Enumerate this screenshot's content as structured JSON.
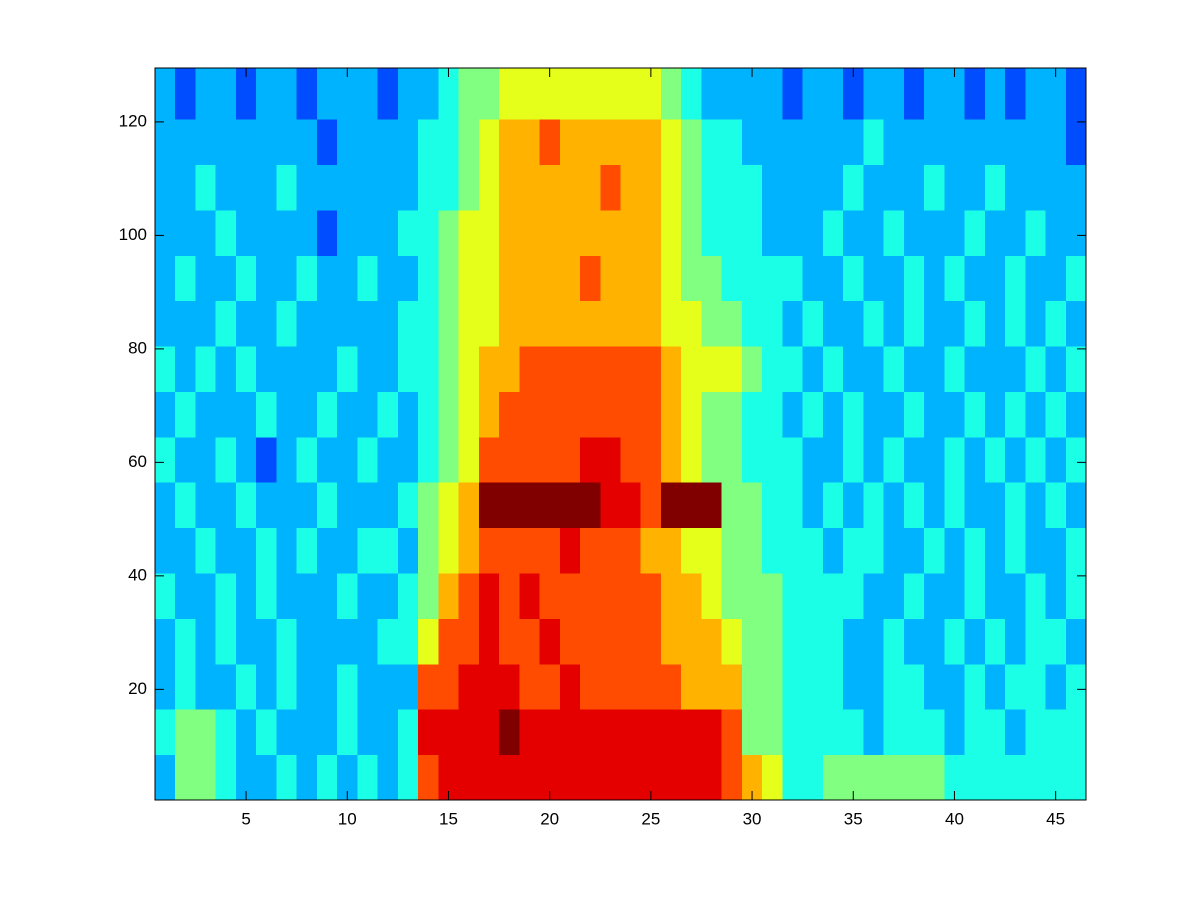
{
  "chart_data": {
    "type": "heatmap",
    "colormap": "jet",
    "clim": [
      0,
      10
    ],
    "xlim": [
      0.5,
      46.5
    ],
    "ylim": [
      0.5,
      129.5
    ],
    "xticks": [
      5,
      10,
      15,
      20,
      25,
      30,
      35,
      40,
      45
    ],
    "yticks": [
      20,
      40,
      60,
      80,
      100,
      120
    ],
    "xbins": [
      0.5,
      1.5,
      2.5,
      3.5,
      4.5,
      5.5,
      6.5,
      7.5,
      8.5,
      9.5,
      10.5,
      11.5,
      12.5,
      13.5,
      14.5,
      15.5,
      16.5,
      17.5,
      18.5,
      19.5,
      20.5,
      21.5,
      22.5,
      23.5,
      24.5,
      25.5,
      26.5,
      27.5,
      28.5,
      29.5,
      30.5,
      31.5,
      32.5,
      33.5,
      34.5,
      35.5,
      36.5,
      37.5,
      38.5,
      39.5,
      40.5,
      41.5,
      42.5,
      43.5,
      44.5,
      45.5,
      46.5
    ],
    "ybins": [
      0.5,
      8.5,
      16.5,
      24.5,
      32.5,
      40.5,
      48.5,
      56.5,
      64.5,
      72.5,
      80.5,
      88.5,
      96.5,
      104.5,
      112.5,
      120.5,
      129.5
    ],
    "z": [
      [
        3,
        5,
        5,
        4,
        3,
        3,
        4,
        3,
        4,
        3,
        4,
        3,
        4,
        8,
        9,
        9,
        9,
        9,
        9,
        9,
        9,
        9,
        9,
        9,
        9,
        9,
        9,
        9,
        8,
        7,
        6,
        4,
        4,
        5,
        5,
        5,
        5,
        5,
        5,
        4,
        4,
        4,
        4,
        4,
        4,
        4
      ],
      [
        4,
        5,
        5,
        4,
        3,
        4,
        3,
        3,
        3,
        4,
        3,
        3,
        4,
        9,
        9,
        9,
        9,
        10,
        9,
        9,
        9,
        9,
        9,
        9,
        9,
        9,
        9,
        9,
        8,
        5,
        5,
        4,
        4,
        4,
        4,
        3,
        4,
        4,
        4,
        3,
        4,
        4,
        3,
        4,
        4,
        4
      ],
      [
        3,
        4,
        3,
        3,
        4,
        3,
        4,
        3,
        3,
        4,
        3,
        3,
        3,
        8,
        8,
        9,
        9,
        9,
        8,
        8,
        9,
        8,
        8,
        8,
        8,
        8,
        7,
        7,
        7,
        5,
        5,
        4,
        4,
        4,
        3,
        3,
        4,
        4,
        3,
        3,
        4,
        3,
        4,
        4,
        3,
        4
      ],
      [
        3,
        4,
        3,
        4,
        3,
        3,
        4,
        3,
        3,
        3,
        3,
        4,
        4,
        6,
        8,
        8,
        9,
        8,
        8,
        9,
        8,
        8,
        8,
        8,
        8,
        7,
        7,
        7,
        6,
        5,
        5,
        4,
        4,
        4,
        3,
        3,
        4,
        3,
        3,
        4,
        3,
        4,
        3,
        4,
        4,
        3
      ],
      [
        4,
        3,
        3,
        4,
        3,
        4,
        3,
        3,
        3,
        4,
        3,
        3,
        4,
        5,
        7,
        8,
        9,
        8,
        9,
        8,
        8,
        8,
        8,
        8,
        8,
        7,
        7,
        6,
        5,
        5,
        5,
        4,
        4,
        4,
        4,
        3,
        3,
        4,
        3,
        3,
        4,
        3,
        3,
        4,
        3,
        4
      ],
      [
        3,
        3,
        4,
        3,
        3,
        4,
        3,
        4,
        3,
        3,
        4,
        4,
        3,
        5,
        6,
        7,
        8,
        8,
        8,
        8,
        9,
        8,
        8,
        8,
        7,
        7,
        6,
        6,
        5,
        5,
        4,
        4,
        4,
        3,
        4,
        4,
        3,
        3,
        4,
        3,
        4,
        3,
        4,
        3,
        3,
        4
      ],
      [
        3,
        4,
        3,
        3,
        4,
        3,
        3,
        3,
        4,
        3,
        3,
        3,
        4,
        5,
        6,
        7,
        10,
        10,
        10,
        10,
        10,
        10,
        9,
        9,
        8,
        10,
        10,
        10,
        5,
        5,
        4,
        4,
        3,
        4,
        3,
        4,
        3,
        4,
        3,
        4,
        3,
        3,
        4,
        3,
        4,
        3
      ],
      [
        4,
        3,
        3,
        4,
        3,
        2,
        3,
        4,
        3,
        3,
        4,
        3,
        3,
        4,
        5,
        6,
        8,
        8,
        8,
        8,
        8,
        9,
        9,
        8,
        8,
        7,
        6,
        5,
        5,
        4,
        4,
        4,
        3,
        3,
        4,
        3,
        4,
        3,
        3,
        4,
        3,
        4,
        3,
        4,
        3,
        4
      ],
      [
        3,
        4,
        3,
        3,
        3,
        4,
        3,
        3,
        4,
        3,
        3,
        4,
        3,
        4,
        5,
        6,
        7,
        8,
        8,
        8,
        8,
        8,
        8,
        8,
        8,
        7,
        6,
        5,
        5,
        4,
        4,
        3,
        4,
        3,
        4,
        3,
        3,
        4,
        3,
        3,
        4,
        3,
        4,
        3,
        4,
        3
      ],
      [
        4,
        3,
        4,
        3,
        4,
        3,
        3,
        3,
        3,
        4,
        3,
        3,
        4,
        4,
        5,
        6,
        7,
        7,
        8,
        8,
        8,
        8,
        8,
        8,
        8,
        7,
        6,
        6,
        6,
        5,
        4,
        4,
        3,
        4,
        3,
        3,
        4,
        3,
        3,
        4,
        3,
        3,
        3,
        4,
        3,
        4
      ],
      [
        3,
        3,
        3,
        4,
        3,
        3,
        4,
        3,
        3,
        3,
        3,
        3,
        4,
        4,
        5,
        6,
        6,
        7,
        7,
        7,
        7,
        7,
        7,
        7,
        7,
        6,
        6,
        5,
        5,
        4,
        4,
        3,
        4,
        3,
        3,
        4,
        3,
        4,
        3,
        3,
        4,
        3,
        4,
        3,
        4,
        3
      ],
      [
        3,
        4,
        3,
        3,
        4,
        3,
        3,
        4,
        3,
        3,
        4,
        3,
        3,
        4,
        5,
        6,
        6,
        7,
        7,
        7,
        7,
        8,
        7,
        7,
        7,
        6,
        5,
        5,
        4,
        4,
        4,
        4,
        3,
        3,
        4,
        3,
        3,
        4,
        3,
        4,
        3,
        3,
        4,
        3,
        3,
        4
      ],
      [
        3,
        3,
        3,
        4,
        3,
        3,
        3,
        3,
        2,
        3,
        3,
        3,
        4,
        4,
        5,
        6,
        6,
        7,
        7,
        7,
        7,
        7,
        7,
        7,
        7,
        6,
        5,
        4,
        4,
        4,
        3,
        3,
        3,
        4,
        3,
        3,
        4,
        3,
        3,
        3,
        4,
        3,
        3,
        4,
        3,
        3
      ],
      [
        3,
        3,
        4,
        3,
        3,
        3,
        4,
        3,
        3,
        3,
        3,
        3,
        3,
        4,
        4,
        5,
        6,
        7,
        7,
        7,
        7,
        7,
        8,
        7,
        7,
        6,
        5,
        4,
        4,
        4,
        3,
        3,
        3,
        3,
        4,
        3,
        3,
        3,
        4,
        3,
        3,
        4,
        3,
        3,
        3,
        3
      ],
      [
        3,
        3,
        3,
        3,
        3,
        3,
        3,
        3,
        2,
        3,
        3,
        3,
        3,
        4,
        4,
        5,
        6,
        7,
        7,
        8,
        7,
        7,
        7,
        7,
        7,
        6,
        5,
        4,
        4,
        3,
        3,
        3,
        3,
        3,
        3,
        4,
        3,
        3,
        3,
        3,
        3,
        3,
        3,
        3,
        3,
        2
      ],
      [
        3,
        2,
        3,
        3,
        2,
        3,
        3,
        2,
        3,
        3,
        3,
        2,
        3,
        3,
        4,
        5,
        5,
        6,
        6,
        6,
        6,
        6,
        6,
        6,
        6,
        5,
        4,
        3,
        3,
        3,
        3,
        2,
        3,
        3,
        2,
        3,
        3,
        2,
        3,
        3,
        2,
        3,
        2,
        3,
        3,
        2
      ]
    ]
  }
}
